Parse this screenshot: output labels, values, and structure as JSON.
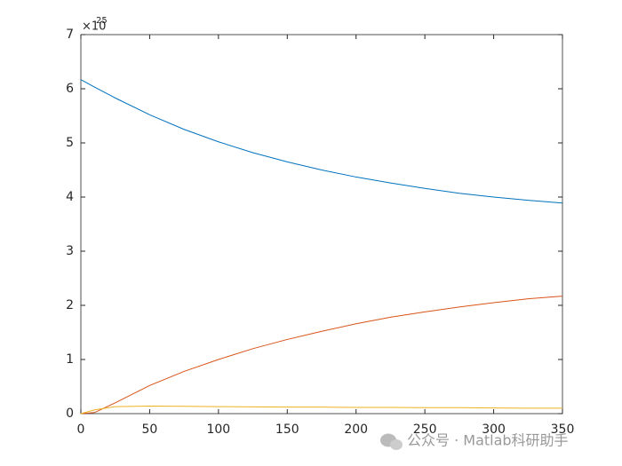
{
  "chart_data": {
    "type": "line",
    "y_multiplier": {
      "base": "×10",
      "exponent": "25"
    },
    "x": [
      0,
      10,
      25,
      50,
      75,
      100,
      125,
      150,
      175,
      200,
      225,
      250,
      275,
      300,
      325,
      350
    ],
    "series": [
      {
        "color": "#0072BD",
        "values": [
          6.17,
          6.03,
          5.83,
          5.52,
          5.25,
          5.02,
          4.82,
          4.65,
          4.5,
          4.37,
          4.26,
          4.16,
          4.07,
          4.0,
          3.94,
          3.89
        ]
      },
      {
        "color": "#D95319",
        "values": [
          0,
          0.02,
          0.2,
          0.52,
          0.78,
          1.0,
          1.2,
          1.37,
          1.52,
          1.66,
          1.78,
          1.88,
          1.97,
          2.05,
          2.12,
          2.17
        ]
      },
      {
        "color": "#EDB120",
        "values": [
          0,
          0.07,
          0.13,
          0.14,
          0.135,
          0.13,
          0.125,
          0.12,
          0.12,
          0.115,
          0.115,
          0.11,
          0.11,
          0.105,
          0.1,
          0.1
        ]
      }
    ],
    "xlim": [
      0,
      350
    ],
    "xticks": [
      0,
      50,
      100,
      150,
      200,
      250,
      300,
      350
    ],
    "ylim": [
      0,
      7
    ],
    "yticks": [
      0,
      1,
      2,
      3,
      4,
      5,
      6,
      7
    ],
    "watermark": "公众号 · Matlab科研助手"
  }
}
